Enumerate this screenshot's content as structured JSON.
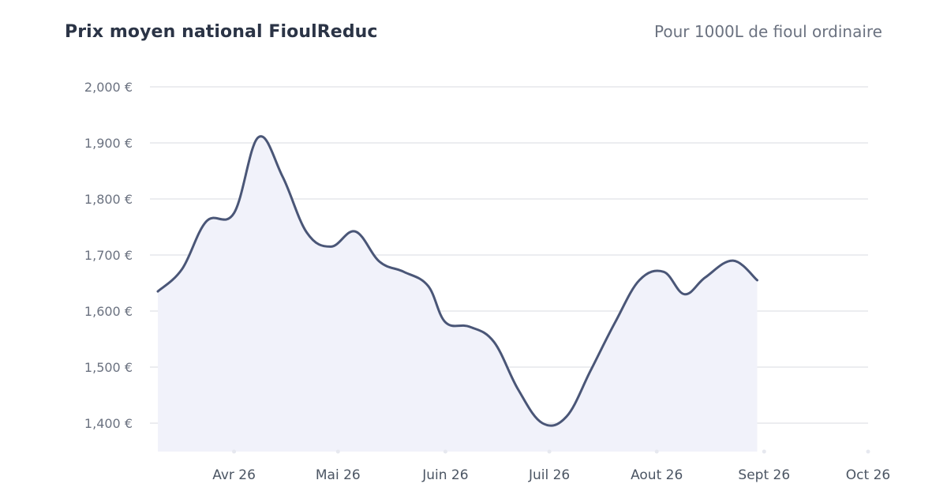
{
  "header": {
    "title": "Prix moyen national FioulReduc",
    "subtitle": "Pour 1000L de fioul ordinaire"
  },
  "colors": {
    "line": "#4a5677",
    "fill": "#f1f2fa",
    "grid": "#e5e7eb",
    "title": "#2b3446"
  },
  "chart_data": {
    "type": "area",
    "title": "Prix moyen national FioulReduc",
    "subtitle": "Pour 1000L de fioul ordinaire",
    "xlabel": "",
    "ylabel": "",
    "ylim": [
      1350,
      2000
    ],
    "yticks": [
      2000,
      1900,
      1800,
      1700,
      1600,
      1500,
      1400
    ],
    "ytick_labels": [
      "2,000 €",
      "1,900 €",
      "1,800 €",
      "1,700 €",
      "1,600 €",
      "1,500 €",
      "1,400 €"
    ],
    "xticks": [
      {
        "label": "Avr 26",
        "date": "2026-04-01"
      },
      {
        "label": "Mai 26",
        "date": "2026-05-01"
      },
      {
        "label": "Juin 26",
        "date": "2026-06-01"
      },
      {
        "label": "Juil 26",
        "date": "2026-07-01"
      },
      {
        "label": "Aout 26",
        "date": "2026-08-01"
      },
      {
        "label": "Sept 26",
        "date": "2026-09-01"
      },
      {
        "label": "Oct 26",
        "date": "2026-10-01"
      }
    ],
    "xlim": [
      "2026-03-10",
      "2026-10-01"
    ],
    "grid": true,
    "legend": "none",
    "series": [
      {
        "points": [
          {
            "x": "2026-03-10",
            "y": 1635
          },
          {
            "x": "2026-03-17",
            "y": 1675
          },
          {
            "x": "2026-03-24",
            "y": 1760
          },
          {
            "x": "2026-04-01",
            "y": 1775
          },
          {
            "x": "2026-04-08",
            "y": 1910
          },
          {
            "x": "2026-04-15",
            "y": 1840
          },
          {
            "x": "2026-04-22",
            "y": 1740
          },
          {
            "x": "2026-04-29",
            "y": 1715
          },
          {
            "x": "2026-05-06",
            "y": 1742
          },
          {
            "x": "2026-05-13",
            "y": 1688
          },
          {
            "x": "2026-05-20",
            "y": 1670
          },
          {
            "x": "2026-05-27",
            "y": 1645
          },
          {
            "x": "2026-06-01",
            "y": 1580
          },
          {
            "x": "2026-06-08",
            "y": 1572
          },
          {
            "x": "2026-06-15",
            "y": 1545
          },
          {
            "x": "2026-06-22",
            "y": 1460
          },
          {
            "x": "2026-06-29",
            "y": 1400
          },
          {
            "x": "2026-07-06",
            "y": 1412
          },
          {
            "x": "2026-07-13",
            "y": 1495
          },
          {
            "x": "2026-07-20",
            "y": 1580
          },
          {
            "x": "2026-07-27",
            "y": 1655
          },
          {
            "x": "2026-08-03",
            "y": 1670
          },
          {
            "x": "2026-08-09",
            "y": 1630
          },
          {
            "x": "2026-08-15",
            "y": 1660
          },
          {
            "x": "2026-08-23",
            "y": 1690
          },
          {
            "x": "2026-08-30",
            "y": 1655
          }
        ]
      }
    ]
  }
}
